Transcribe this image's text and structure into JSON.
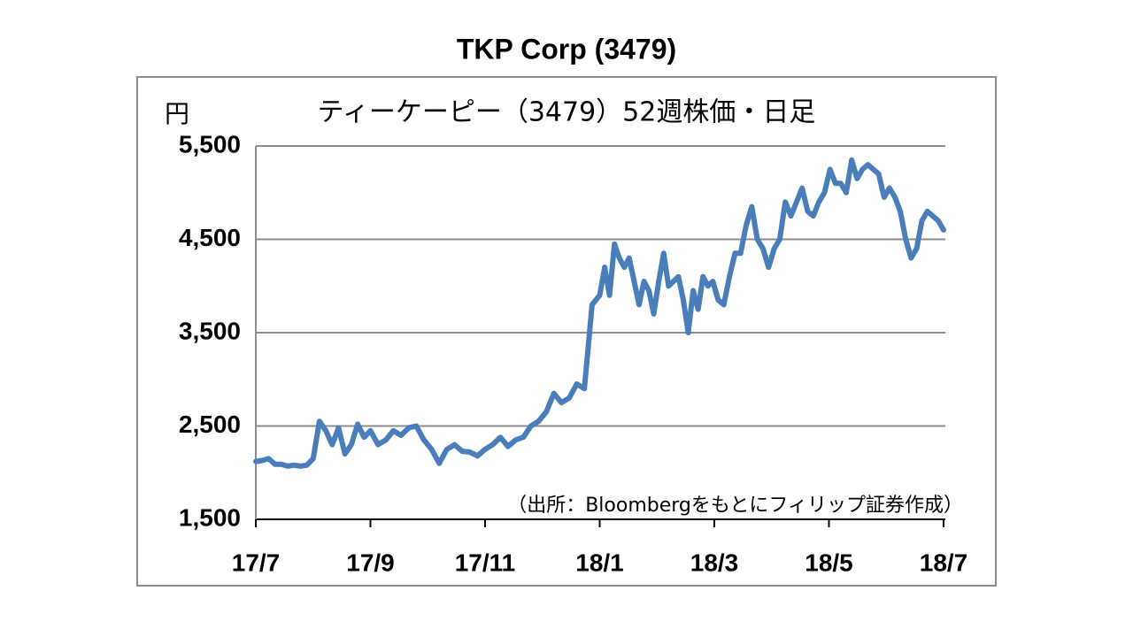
{
  "chart_data": {
    "type": "line",
    "title": "TKP Corp (3479)",
    "subtitle": "ティーケーピー（3479）52週株価・日足",
    "y_unit_label": "円",
    "annotation": "（出所：Bloombergをもとにフィリップ証券作成）",
    "series": [
      {
        "color": "#4a7ebb",
        "values": [
          2120,
          2130,
          2150,
          2090,
          2090,
          2070,
          2080,
          2070,
          2080,
          2150,
          2550,
          2450,
          2300,
          2480,
          2200,
          2300,
          2520,
          2380,
          2450,
          2300,
          2350,
          2450,
          2400,
          2480,
          2500,
          2350,
          2250,
          2100,
          2250,
          2300,
          2230,
          2220,
          2180,
          2250,
          2300,
          2380,
          2280,
          2350,
          2380,
          2500,
          2550,
          2650,
          2850,
          2750,
          2800,
          2950,
          2900,
          3800,
          3900,
          4200,
          3900,
          4450,
          4300,
          4200,
          4300,
          4050,
          3800,
          4050,
          3950,
          3700,
          4050,
          4350,
          4000,
          4050,
          4100,
          3850,
          3500,
          3950,
          3750,
          4100,
          4000,
          4050,
          3850,
          3800,
          4100,
          4350,
          4350,
          4650,
          4850,
          4500,
          4400,
          4200,
          4400,
          4500,
          4900,
          4750,
          4900,
          5050,
          4800,
          4750,
          4900,
          5000,
          5250,
          5100,
          5100,
          5000,
          5350,
          5150,
          5250,
          5300,
          5250,
          5200,
          4950,
          5050,
          4950,
          4800,
          4500,
          4300,
          4400,
          4700,
          4800,
          4750,
          4700,
          4600
        ]
      }
    ],
    "xlim": [
      0,
      113
    ],
    "xticks": [
      {
        "value": 0,
        "label": "17/7"
      },
      {
        "value": 18,
        "label": "17/9"
      },
      {
        "value": 33,
        "label": "17/11"
      },
      {
        "value": 48,
        "label": "18/1"
      },
      {
        "value": 71.3,
        "label": "18/3"
      },
      {
        "value": 91.8,
        "label": "18/5"
      },
      {
        "value": 113,
        "label": "18/7"
      }
    ],
    "ylim": [
      1500,
      5500
    ],
    "yticks": [
      {
        "value": 1500,
        "label": "1,500"
      },
      {
        "value": 2500,
        "label": "2,500"
      },
      {
        "value": 3500,
        "label": "3,500"
      },
      {
        "value": 4500,
        "label": "4,500"
      },
      {
        "value": 5500,
        "label": "5,500"
      }
    ],
    "grid": true
  }
}
